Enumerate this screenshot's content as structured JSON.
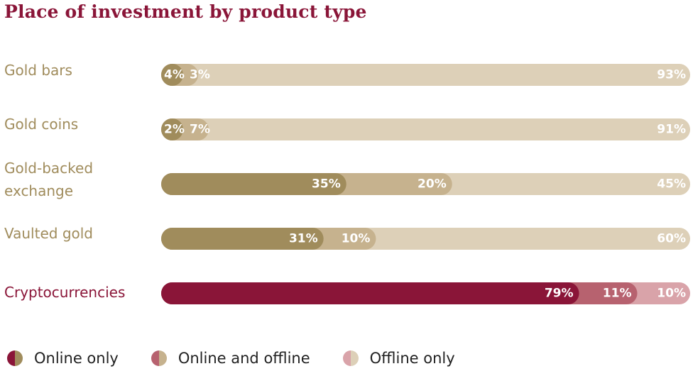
{
  "title": "Place of investment by product type",
  "chart_data": {
    "type": "bar",
    "stacked": true,
    "orientation": "horizontal",
    "title": "Place of investment by product type",
    "categories": [
      {
        "lines": [
          "Gold bars"
        ],
        "color": "#a08c5c"
      },
      {
        "lines": [
          "Gold coins"
        ],
        "color": "#a08c5c"
      },
      {
        "lines": [
          "Gold-backed",
          "exchange"
        ],
        "color": "#a08c5c"
      },
      {
        "lines": [
          "Vaulted gold"
        ],
        "color": "#a08c5c"
      },
      {
        "lines": [
          "Cryptocurrencies"
        ],
        "color": "#8a1538"
      }
    ],
    "series": [
      {
        "name": "Online only",
        "values": [
          4,
          2,
          35,
          31,
          79
        ],
        "labels": [
          "4%",
          "2%",
          "35%",
          "31%",
          "79%"
        ]
      },
      {
        "name": "Online and offline",
        "values": [
          3,
          7,
          20,
          10,
          11
        ],
        "labels": [
          "3%",
          "7%",
          "20%",
          "10%",
          "11%"
        ]
      },
      {
        "name": "Offline only",
        "values": [
          93,
          91,
          45,
          60,
          10
        ],
        "labels": [
          "93%",
          "91%",
          "45%",
          "60%",
          "10%"
        ]
      }
    ],
    "colors": {
      "gold": [
        "#a08c5c",
        "#c6b28e",
        "#ddd0b8"
      ],
      "crypto": [
        "#8a1538",
        "#b7626f",
        "#d9a3a9"
      ]
    },
    "legend_position": "bottom"
  },
  "legend": [
    {
      "label": "Online only",
      "swatch": [
        "#8a1538",
        "#a08c5c"
      ]
    },
    {
      "label": "Online and offline",
      "swatch": [
        "#b7626f",
        "#c6b28e"
      ]
    },
    {
      "label": "Offline only",
      "swatch": [
        "#d9a3a9",
        "#ddd0b8"
      ]
    }
  ]
}
